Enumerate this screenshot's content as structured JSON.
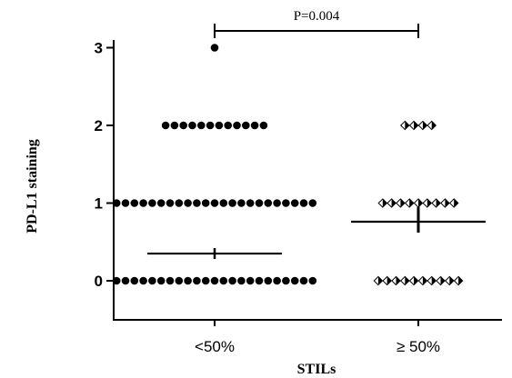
{
  "chart_data": {
    "type": "scatter",
    "xlabel": "STILs",
    "ylabel": "PD-L1   staining",
    "categories": [
      "<50%",
      "≥ 50%"
    ],
    "yticks": [
      "0",
      "1",
      "2",
      "3"
    ],
    "ylim": [
      -0.45,
      3.15
    ],
    "groups": [
      {
        "category": "<50%",
        "marker": "circle",
        "counts": {
          "0": 23,
          "1": 23,
          "2": 12,
          "3": 1
        },
        "median": 0.35
      },
      {
        "category": "≥ 50%",
        "marker": "diamond",
        "counts": {
          "0": 10,
          "1": 9,
          "2": 4,
          "3": 0
        },
        "median": 0.76,
        "error": [
          0.62,
          0.95
        ]
      }
    ],
    "annotation": {
      "text": "P=0.004",
      "from": "<50%",
      "to": "≥ 50%"
    }
  }
}
